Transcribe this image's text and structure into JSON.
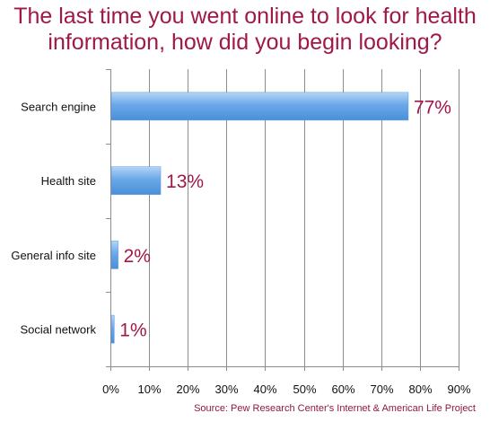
{
  "chart_data": {
    "type": "bar",
    "orientation": "horizontal",
    "title_lines": [
      "The last time you went online to look for health",
      "information, how did you begin looking?"
    ],
    "categories": [
      "Search engine",
      "Health site",
      "General info site",
      "Social network"
    ],
    "values": [
      77,
      13,
      2,
      1
    ],
    "data_labels": [
      "77%",
      "13%",
      "2%",
      "1%"
    ],
    "xlim": [
      0,
      90
    ],
    "x_ticks": [
      0,
      10,
      20,
      30,
      40,
      50,
      60,
      70,
      80,
      90
    ],
    "x_tick_labels": [
      "0%",
      "10%",
      "20%",
      "30%",
      "40%",
      "50%",
      "60%",
      "70%",
      "80%",
      "90%"
    ],
    "grid": "vertical",
    "colors": {
      "bar": "#6aa8e8",
      "bar_light": "#b5d5f6",
      "bar_dark": "#4b8fd8",
      "label": "#a0174a",
      "grid": "#8c8c8c"
    },
    "source": "Source: Pew Research Center's Internet & American Life Project"
  }
}
